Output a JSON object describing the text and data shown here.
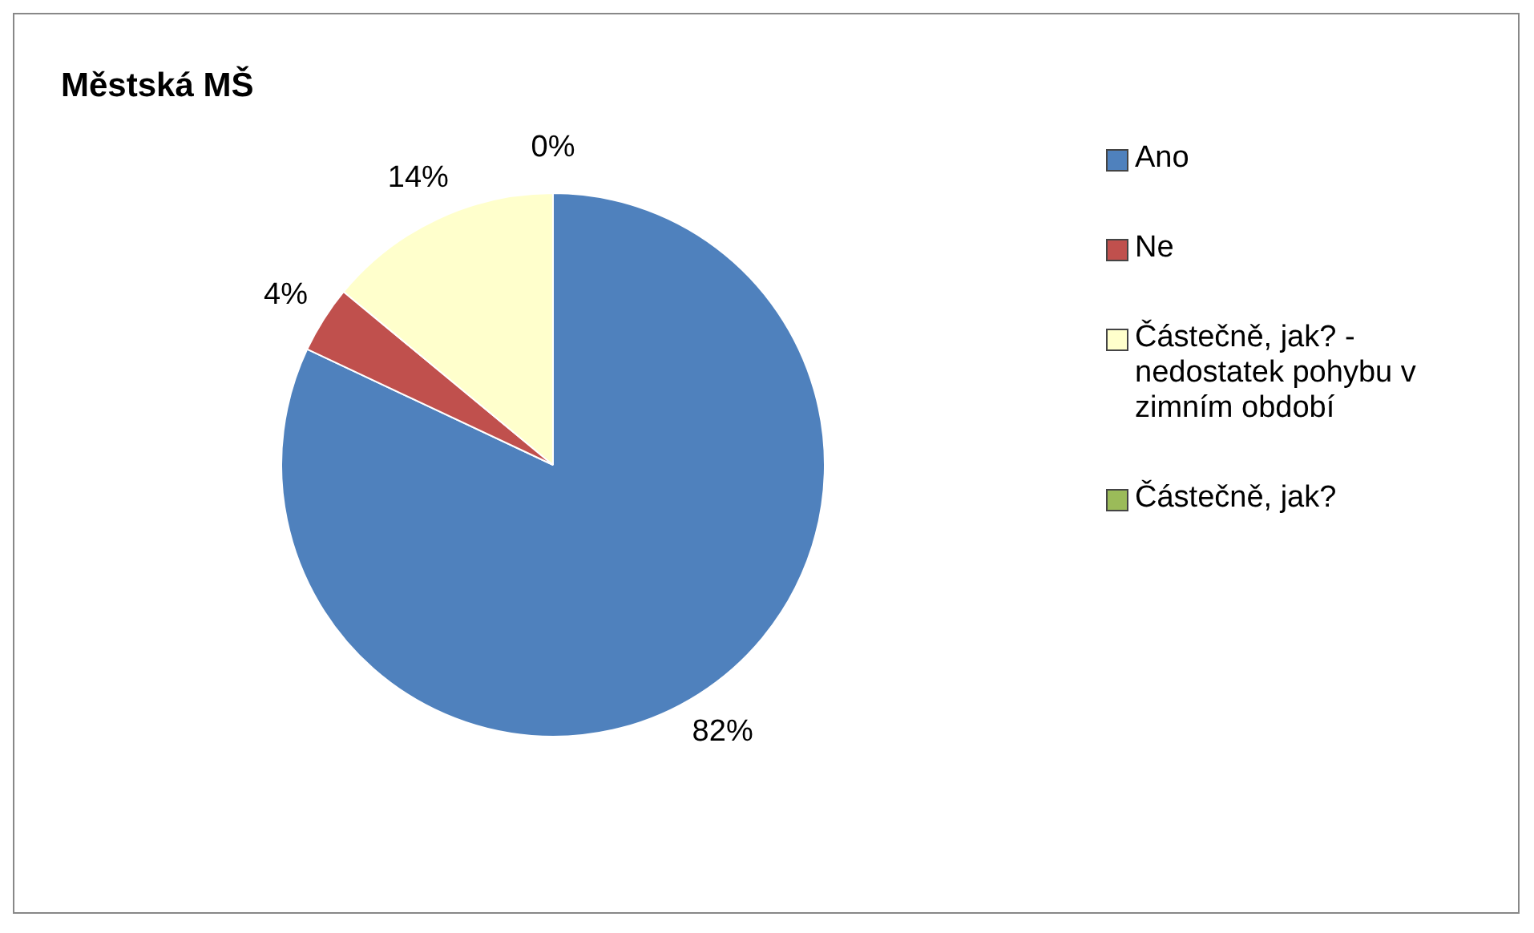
{
  "chart_data": {
    "type": "pie",
    "title": "Městská MŠ",
    "categories": [
      "Ano",
      "Ne",
      "Částečně, jak? - nedostatek pohybu v zimním období",
      "Částečně, jak?"
    ],
    "values": [
      82,
      4,
      14,
      0
    ],
    "colors": [
      "#4f81bd",
      "#c0504d",
      "#ffffcc",
      "#9bbb59"
    ],
    "value_labels": [
      "82%",
      "4%",
      "14%",
      "0%"
    ],
    "legend": "right"
  }
}
